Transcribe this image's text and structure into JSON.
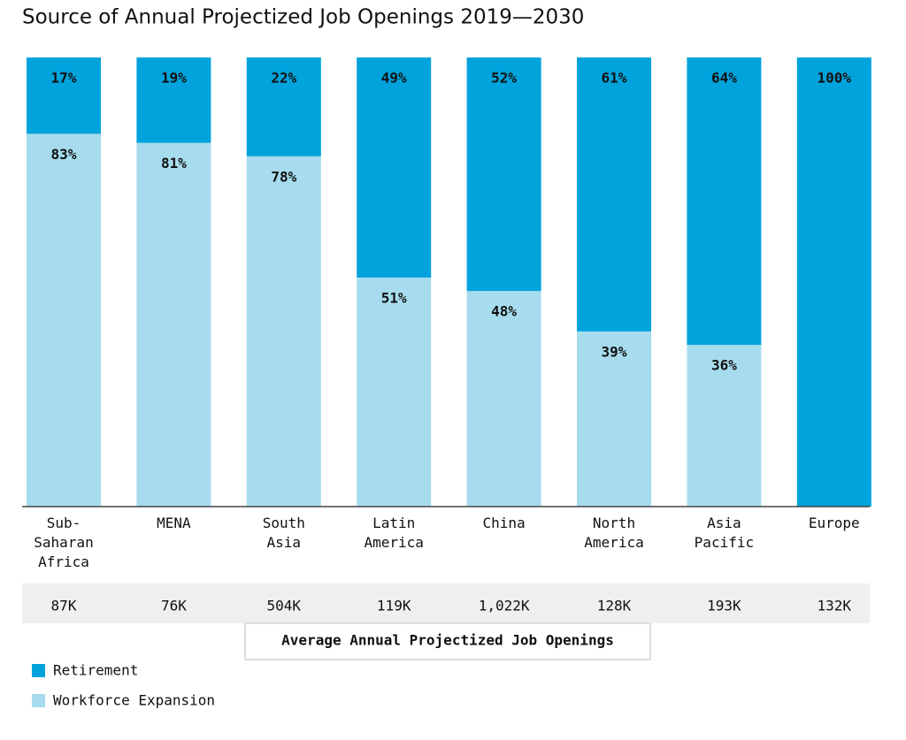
{
  "chart_data": {
    "type": "stacked_bar",
    "title": "Source of Annual Projectized Job Openings 2019—2030",
    "categories": [
      "Sub-\nSaharan\nAfrica",
      "MENA",
      "South\nAsia",
      "Latin\nAmerica",
      "China",
      "North\nAmerica",
      "Asia\nPacific",
      "Europe"
    ],
    "series": [
      {
        "name": "Retirement",
        "color": "#00a3dc",
        "values": [
          17,
          19,
          22,
          49,
          52,
          61,
          64,
          100
        ],
        "value_labels": [
          "17%",
          "19%",
          "22%",
          "49%",
          "52%",
          "61%",
          "64%",
          "100%"
        ]
      },
      {
        "name": "Workforce Expansion",
        "color": "#a6dcee",
        "values": [
          83,
          81,
          78,
          51,
          48,
          39,
          36,
          0
        ],
        "value_labels": [
          "83%",
          "81%",
          "78%",
          "51%",
          "48%",
          "39%",
          "36%",
          null
        ]
      }
    ],
    "ylim": [
      0,
      100
    ],
    "openings": {
      "label": "Average Annual Projectized Job Openings",
      "values": [
        "87K",
        "76K",
        "504K",
        "119K",
        "1,022K",
        "128K",
        "193K",
        "132K"
      ]
    }
  }
}
